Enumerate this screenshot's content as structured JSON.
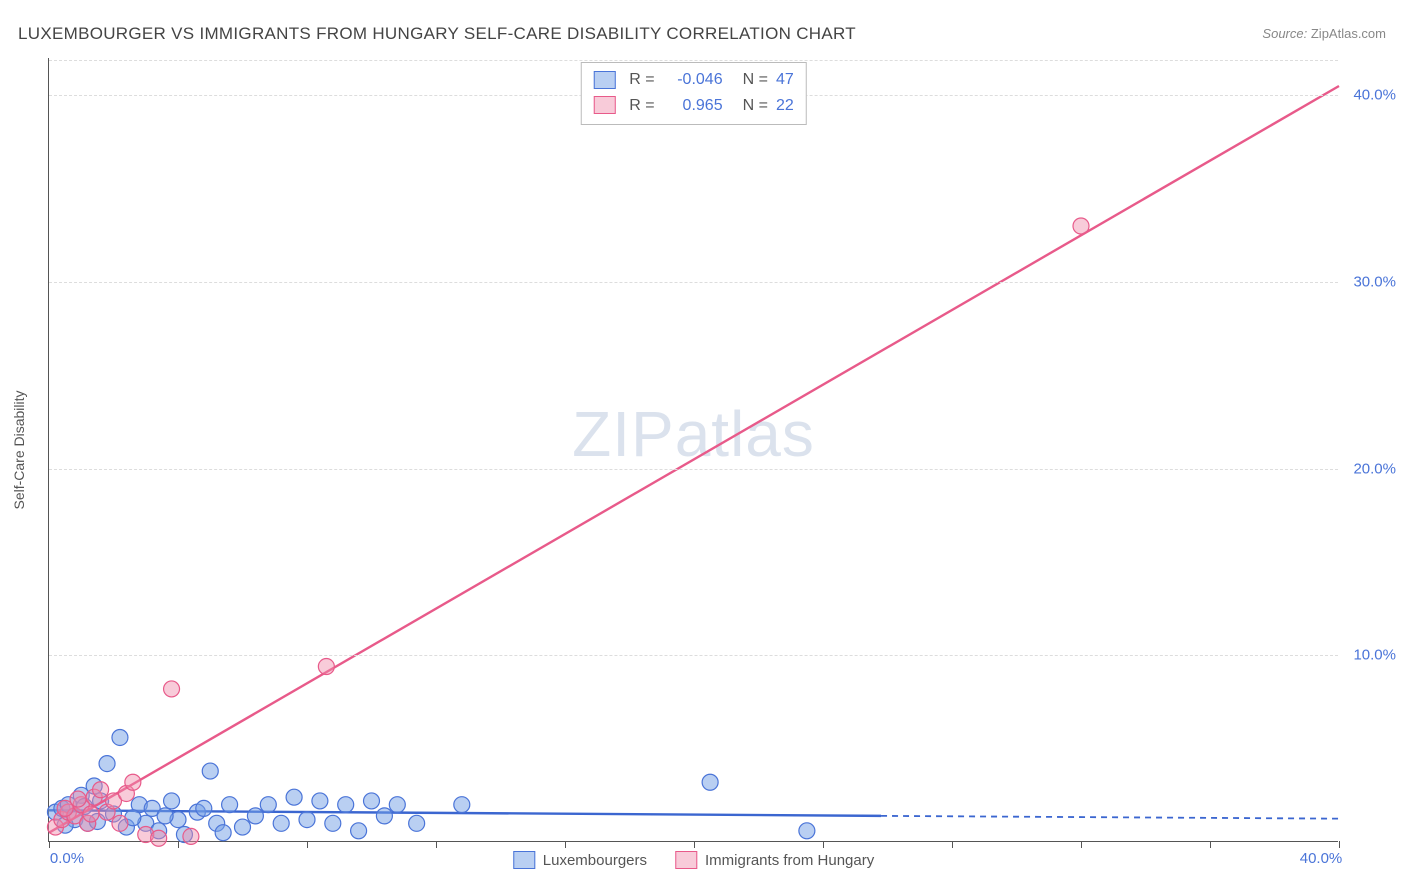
{
  "title": "LUXEMBOURGER VS IMMIGRANTS FROM HUNGARY SELF-CARE DISABILITY CORRELATION CHART",
  "source_label": "Source:",
  "source_value": "ZipAtlas.com",
  "watermark": "ZIPatlas",
  "y_axis_title": "Self-Care Disability",
  "chart": {
    "type": "scatter",
    "xlim": [
      0,
      40
    ],
    "ylim": [
      0,
      42
    ],
    "x_ticks_major": [
      0,
      40
    ],
    "x_ticks_minor": [
      4,
      8,
      12,
      16,
      20,
      24,
      28,
      32,
      36
    ],
    "y_ticks": [
      10,
      20,
      30,
      40
    ],
    "x_tick_labels": {
      "0": "0.0%",
      "40": "40.0%"
    },
    "y_tick_labels": {
      "10": "10.0%",
      "20": "20.0%",
      "30": "30.0%",
      "40": "40.0%"
    },
    "background_color": "#ffffff",
    "grid_color": "#dddddd",
    "axis_color": "#555555",
    "tick_label_color": "#4a74d8",
    "series": [
      {
        "name": "Luxembourgers",
        "marker_fill": "rgba(115,160,230,0.5)",
        "marker_stroke": "#4a74d8",
        "marker_radius": 8,
        "trend_color": "#3b66d0",
        "trend_dash_color": "#3b66d0",
        "R": "-0.046",
        "N": "47",
        "trend": {
          "x1": 0,
          "y1": 1.7,
          "x2_solid": 25.8,
          "y2_solid": 1.4,
          "x2_dash": 40,
          "y2_dash": 1.25
        },
        "points": [
          [
            0.2,
            1.6
          ],
          [
            0.4,
            1.8
          ],
          [
            0.6,
            2.0
          ],
          [
            0.8,
            1.2
          ],
          [
            1.0,
            2.5
          ],
          [
            1.2,
            1.0
          ],
          [
            1.4,
            3.0
          ],
          [
            1.6,
            2.2
          ],
          [
            1.8,
            4.2
          ],
          [
            2.0,
            1.5
          ],
          [
            2.2,
            5.6
          ],
          [
            2.4,
            0.8
          ],
          [
            2.8,
            2.0
          ],
          [
            3.0,
            1.0
          ],
          [
            3.2,
            1.8
          ],
          [
            3.4,
            0.6
          ],
          [
            3.8,
            2.2
          ],
          [
            4.0,
            1.2
          ],
          [
            4.2,
            0.4
          ],
          [
            4.6,
            1.6
          ],
          [
            5.0,
            3.8
          ],
          [
            5.2,
            1.0
          ],
          [
            5.6,
            2.0
          ],
          [
            6.0,
            0.8
          ],
          [
            6.4,
            1.4
          ],
          [
            6.8,
            2.0
          ],
          [
            7.2,
            1.0
          ],
          [
            7.6,
            2.4
          ],
          [
            8.0,
            1.2
          ],
          [
            8.4,
            2.2
          ],
          [
            8.8,
            1.0
          ],
          [
            9.2,
            2.0
          ],
          [
            9.6,
            0.6
          ],
          [
            10.0,
            2.2
          ],
          [
            10.4,
            1.4
          ],
          [
            10.8,
            2.0
          ],
          [
            11.4,
            1.0
          ],
          [
            12.8,
            2.0
          ],
          [
            20.5,
            3.2
          ],
          [
            23.5,
            0.6
          ],
          [
            4.8,
            1.8
          ],
          [
            5.4,
            0.5
          ],
          [
            2.6,
            1.3
          ],
          [
            1.1,
            1.9
          ],
          [
            0.5,
            0.9
          ],
          [
            1.5,
            1.1
          ],
          [
            3.6,
            1.4
          ]
        ]
      },
      {
        "name": "Immigrants from Hungary",
        "marker_fill": "rgba(240,140,170,0.45)",
        "marker_stroke": "#e85a8a",
        "marker_radius": 8,
        "trend_color": "#e85a8a",
        "R": "0.965",
        "N": "22",
        "trend": {
          "x1": 0,
          "y1": 0.5,
          "x2_solid": 40,
          "y2_solid": 40.5
        },
        "points": [
          [
            0.2,
            0.8
          ],
          [
            0.4,
            1.2
          ],
          [
            0.6,
            1.6
          ],
          [
            0.8,
            1.4
          ],
          [
            1.0,
            2.0
          ],
          [
            1.2,
            1.0
          ],
          [
            1.4,
            2.4
          ],
          [
            1.6,
            2.8
          ],
          [
            1.8,
            1.6
          ],
          [
            2.0,
            2.2
          ],
          [
            2.2,
            1.0
          ],
          [
            2.4,
            2.6
          ],
          [
            2.6,
            3.2
          ],
          [
            3.0,
            0.4
          ],
          [
            3.4,
            0.2
          ],
          [
            3.8,
            8.2
          ],
          [
            4.4,
            0.3
          ],
          [
            8.6,
            9.4
          ],
          [
            32.0,
            33.0
          ],
          [
            0.5,
            1.8
          ],
          [
            0.9,
            2.3
          ],
          [
            1.3,
            1.5
          ]
        ]
      }
    ]
  },
  "stats_legend": [
    {
      "swatch": "blue",
      "R_label": "R =",
      "R": "-0.046",
      "N_label": "N =",
      "N": "47"
    },
    {
      "swatch": "pink",
      "R_label": "R =",
      "R": "0.965",
      "N_label": "N =",
      "N": "22"
    }
  ],
  "bottom_legend": [
    {
      "swatch": "blue",
      "label": "Luxembourgers"
    },
    {
      "swatch": "pink",
      "label": "Immigrants from Hungary"
    }
  ]
}
